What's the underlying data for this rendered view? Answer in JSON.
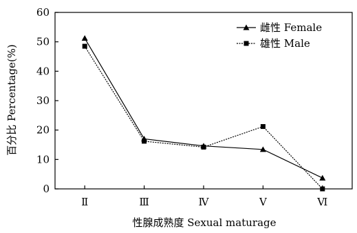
{
  "chart_data": {
    "type": "line",
    "title": "",
    "xlabel": "性腺成熟度 Sexual maturage",
    "ylabel": "百分比 Percentage(%)",
    "categories": [
      "Ⅱ",
      "Ⅲ",
      "Ⅳ",
      "Ⅴ",
      "Ⅵ"
    ],
    "ylim": [
      0,
      60
    ],
    "yticks": [
      0,
      10,
      20,
      30,
      40,
      50,
      60
    ],
    "grid": false,
    "legend_position": "top-right",
    "series": [
      {
        "name": "雌性 Female",
        "marker": "triangle",
        "line_style": "solid",
        "color": "#000000",
        "values": [
          51.2,
          17.0,
          14.6,
          13.4,
          3.7
        ]
      },
      {
        "name": "雄性 Male",
        "marker": "square",
        "line_style": "dashed",
        "color": "#000000",
        "values": [
          48.5,
          16.2,
          14.2,
          21.2,
          0
        ]
      }
    ]
  }
}
